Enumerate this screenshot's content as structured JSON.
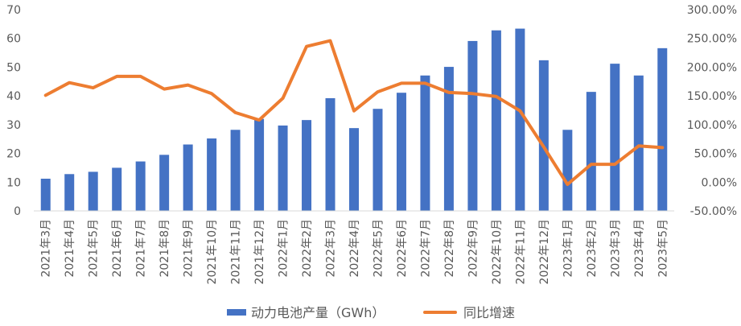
{
  "chart_data": {
    "type": "bar",
    "categories": [
      "2021年3月",
      "2021年4月",
      "2021年5月",
      "2021年6月",
      "2021年7月",
      "2021年8月",
      "2021年9月",
      "2021年10月",
      "2021年11月",
      "2021年12月",
      "2022年1月",
      "2022年2月",
      "2022年3月",
      "2022年4月",
      "2022年5月",
      "2022年6月",
      "2022年7月",
      "2022年8月",
      "2022年9月",
      "2022年10月",
      "2022年11月",
      "2022年12月",
      "2023年1月",
      "2023年2月",
      "2023年3月",
      "2023年4月",
      "2023年5月"
    ],
    "series": [
      {
        "name": "动力电池产量（GWh）",
        "type": "bar",
        "axis": "left",
        "color": "#4472C4",
        "values": [
          11.2,
          12.8,
          13.6,
          15.0,
          17.2,
          19.5,
          23.1,
          25.2,
          28.2,
          32.0,
          29.7,
          31.6,
          39.2,
          28.8,
          35.5,
          41.1,
          47.1,
          50.1,
          59.1,
          62.8,
          63.4,
          52.4,
          28.2,
          41.4,
          51.2,
          47.1,
          56.6
        ]
      },
      {
        "name": "同比增速",
        "type": "line",
        "axis": "right",
        "color": "#ED7D31",
        "values": [
          151,
          173,
          164,
          184,
          184,
          162,
          169,
          154,
          121,
          108,
          146,
          236,
          246,
          124,
          157,
          172,
          172,
          156,
          154,
          149,
          124,
          61,
          -4,
          31,
          31,
          63,
          60
        ]
      }
    ],
    "left_axis": {
      "ylim": [
        0,
        70
      ],
      "ticks": [
        "0",
        "10",
        "20",
        "30",
        "40",
        "50",
        "60",
        "70"
      ]
    },
    "right_axis": {
      "ylim": [
        -50,
        300
      ],
      "ticks": [
        "-50.00%",
        "0.00%",
        "50.00%",
        "100.00%",
        "150.00%",
        "200.00%",
        "250.00%",
        "300.00%"
      ]
    },
    "grid": false,
    "legend": "bottom",
    "legend_items": [
      {
        "label": "动力电池产量（GWh）",
        "kind": "bar",
        "color": "#4472C4"
      },
      {
        "label": "同比增速",
        "kind": "line",
        "color": "#ED7D31"
      }
    ]
  }
}
